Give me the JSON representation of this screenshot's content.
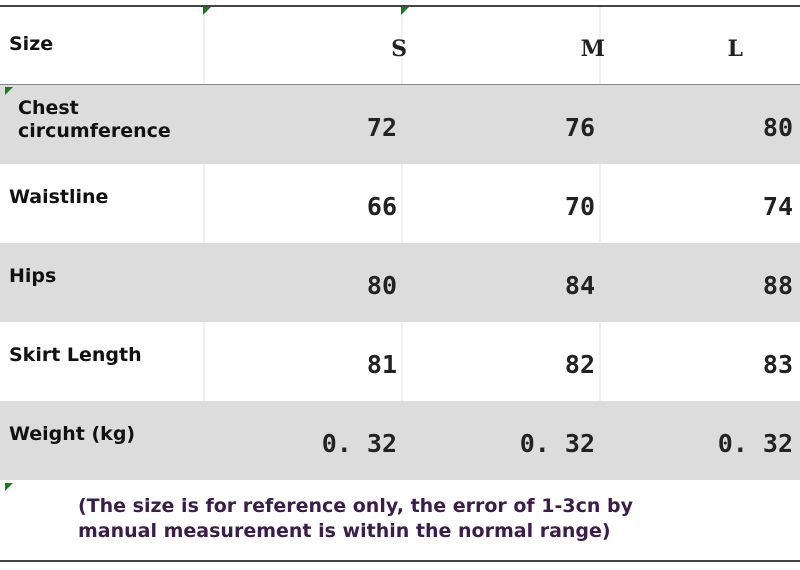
{
  "table": {
    "header": [
      "Size",
      "S",
      "M",
      "L"
    ],
    "rows": [
      [
        "Chest circumference",
        "72",
        "76",
        "80"
      ],
      [
        "Waistline",
        "66",
        "70",
        "74"
      ],
      [
        "Hips",
        "80",
        "84",
        "88"
      ],
      [
        "Skirt Length",
        "81",
        "82",
        "83"
      ],
      [
        "Weight (kg)",
        "0. 32",
        "0. 32",
        "0. 32"
      ]
    ],
    "note": "(The size is for reference only, the error of 1-3cn by manual measurement is within the normal range)"
  }
}
